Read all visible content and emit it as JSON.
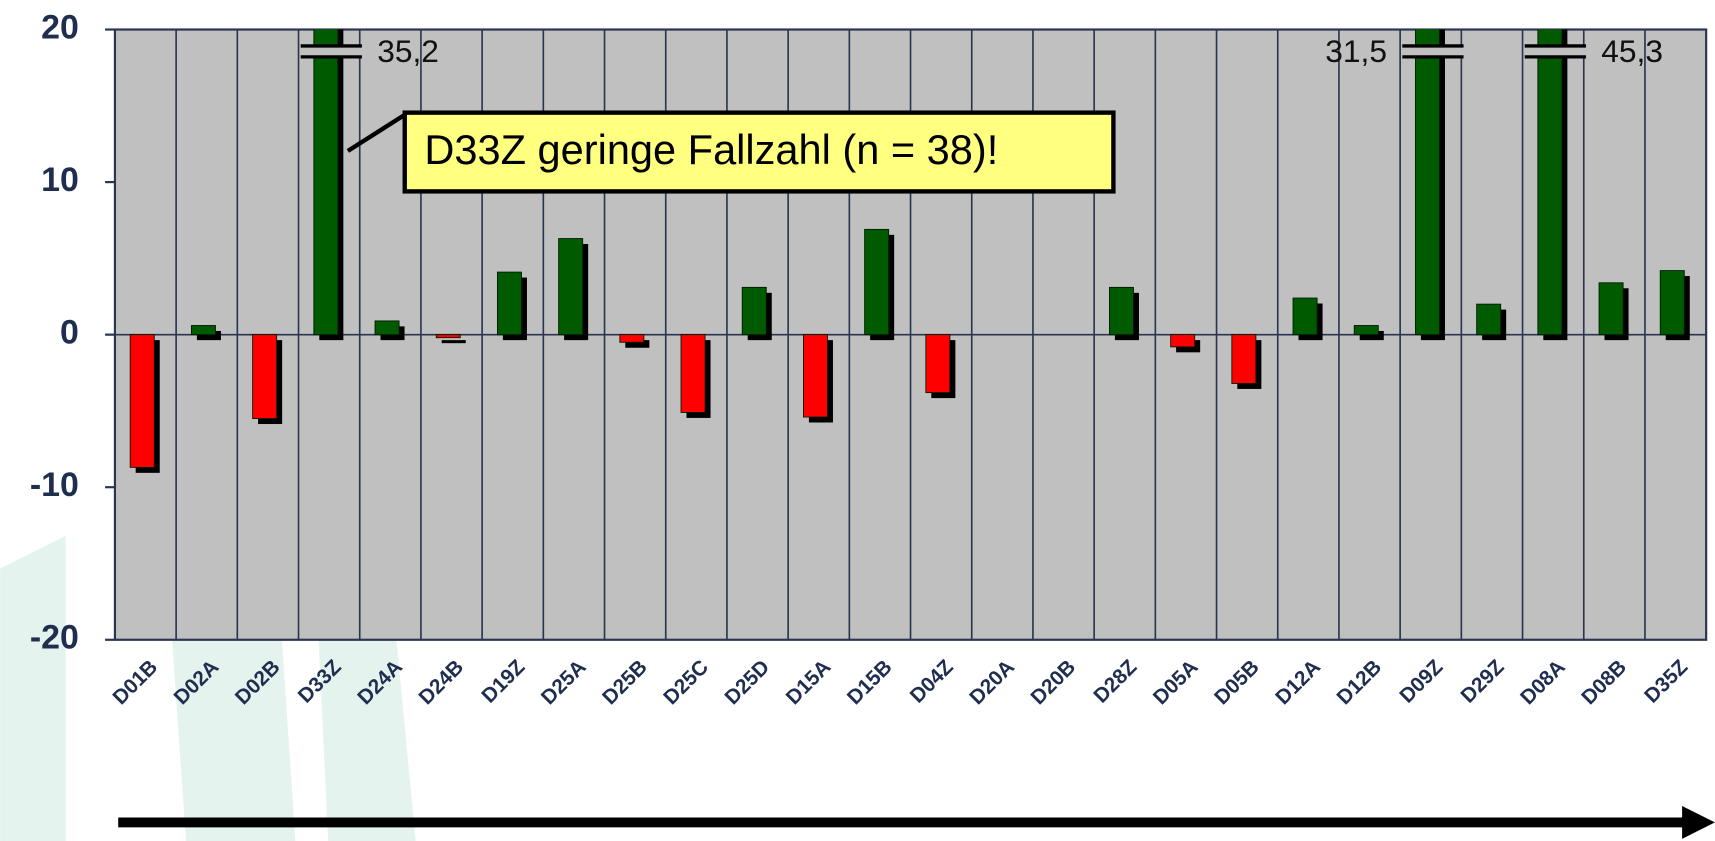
{
  "chart_data": {
    "type": "bar",
    "categories": [
      "D01B",
      "D02A",
      "D02B",
      "D33Z",
      "D24A",
      "D24B",
      "D19Z",
      "D25A",
      "D25B",
      "D25C",
      "D25D",
      "D15A",
      "D15B",
      "D04Z",
      "D20A",
      "D20B",
      "D28Z",
      "D05A",
      "D05B",
      "D12A",
      "D12B",
      "D09Z",
      "D29Z",
      "D08A",
      "D08B",
      "D35Z"
    ],
    "values": [
      -8.7,
      0.6,
      -5.5,
      35.2,
      0.9,
      -0.2,
      4.1,
      6.3,
      -0.5,
      -5.1,
      3.1,
      -5.4,
      6.9,
      -3.8,
      null,
      null,
      3.1,
      -0.8,
      -3.2,
      2.4,
      0.6,
      31.5,
      2.0,
      45.3,
      3.4,
      4.2
    ],
    "value_labels": [
      null,
      null,
      null,
      "35,2",
      null,
      null,
      null,
      null,
      null,
      null,
      null,
      null,
      null,
      null,
      null,
      null,
      null,
      null,
      null,
      null,
      null,
      "31,5",
      null,
      "45,3",
      null,
      null
    ],
    "positive_color": "#005a00",
    "negative_color": "#ff0000",
    "ylim": [
      -20,
      20
    ],
    "yticks": [
      -20,
      -10,
      0,
      10,
      20
    ],
    "annotation": "D33Z geringe Fallzahl (n = 38)!"
  }
}
